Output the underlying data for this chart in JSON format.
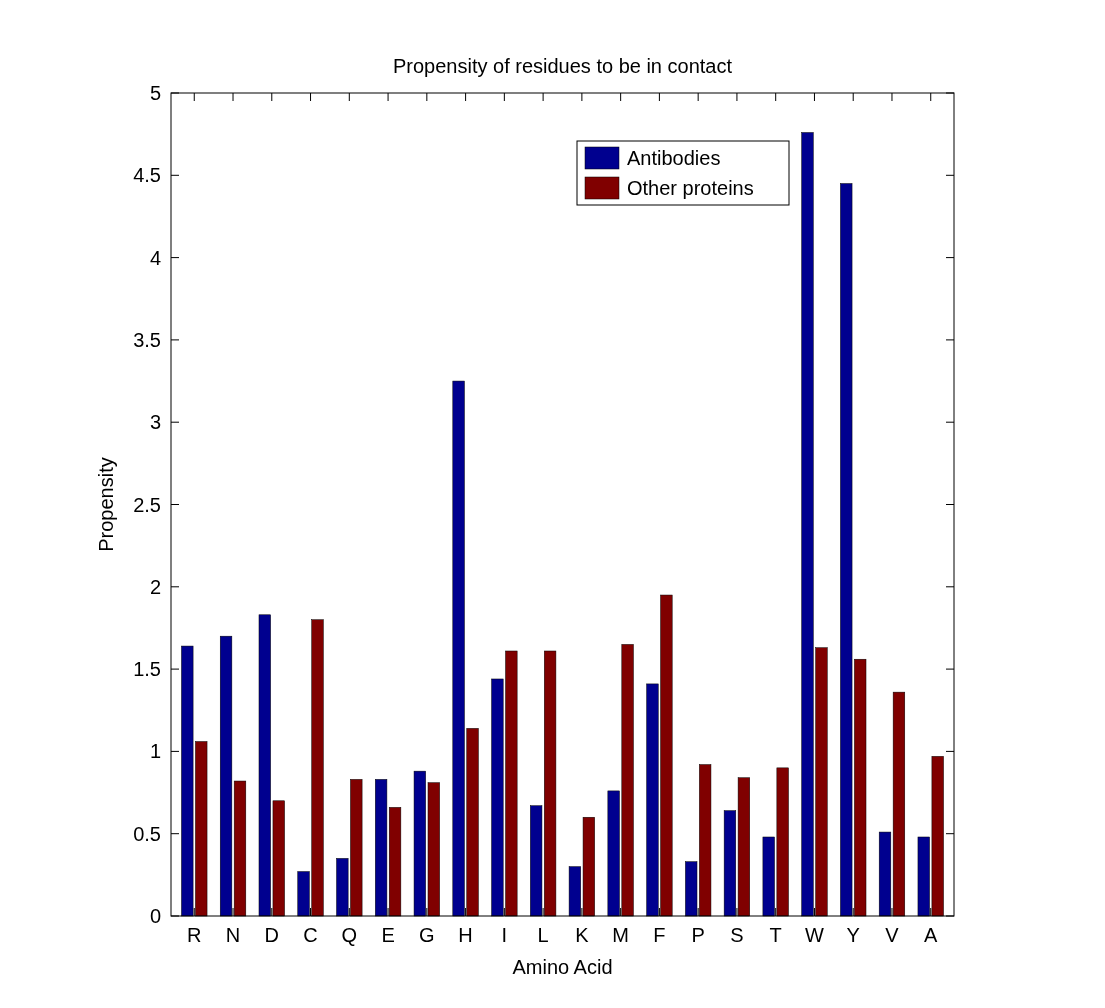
{
  "chart_data": {
    "type": "bar",
    "title": "Propensity of residues to be in contact",
    "xlabel": "Amino Acid",
    "ylabel": "Propensity",
    "categories": [
      "R",
      "N",
      "D",
      "C",
      "Q",
      "E",
      "G",
      "H",
      "I",
      "L",
      "K",
      "M",
      "F",
      "P",
      "S",
      "T",
      "W",
      "Y",
      "V",
      "A"
    ],
    "series": [
      {
        "name": "Antibodies",
        "color": "#00008f",
        "values": [
          1.64,
          1.7,
          1.83,
          0.27,
          0.35,
          0.83,
          0.88,
          3.25,
          1.44,
          0.67,
          0.3,
          0.76,
          1.41,
          0.33,
          0.64,
          0.48,
          4.76,
          4.45,
          0.51,
          0.48
        ]
      },
      {
        "name": "Other proteins",
        "color": "#800000",
        "values": [
          1.06,
          0.82,
          0.7,
          1.8,
          0.83,
          0.66,
          0.81,
          1.14,
          1.61,
          1.61,
          0.6,
          1.65,
          1.95,
          0.92,
          0.84,
          0.9,
          1.63,
          1.56,
          1.36,
          0.97
        ]
      }
    ],
    "ylim": [
      0,
      5
    ],
    "yticks": [
      0,
      0.5,
      1,
      1.5,
      2,
      2.5,
      3,
      3.5,
      4,
      4.5,
      5
    ],
    "grid": false,
    "legend": "top right"
  }
}
